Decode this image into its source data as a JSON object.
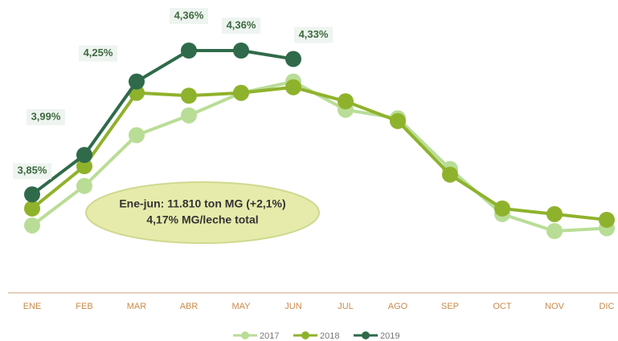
{
  "chart_data": {
    "type": "line",
    "categories": [
      "ENE",
      "FEB",
      "MAR",
      "ABR",
      "MAY",
      "JUN",
      "JUL",
      "AGO",
      "SEP",
      "OCT",
      "NOV",
      "DIC"
    ],
    "series": [
      {
        "name": "2017",
        "color": "#b9dd96",
        "values": [
          3.74,
          3.88,
          4.06,
          4.13,
          4.21,
          4.25,
          4.15,
          4.12,
          3.94,
          3.78,
          3.72,
          3.73
        ]
      },
      {
        "name": "2018",
        "color": "#8fb22c",
        "values": [
          3.8,
          3.95,
          4.21,
          4.2,
          4.21,
          4.23,
          4.18,
          4.11,
          3.92,
          3.8,
          3.78,
          3.76
        ]
      },
      {
        "name": "2019",
        "color": "#2f6a4a",
        "values": [
          3.85,
          3.99,
          4.25,
          4.36,
          4.36,
          4.33,
          null,
          null,
          null,
          null,
          null,
          null
        ],
        "value_labels": [
          "3,85%",
          "3,99%",
          "4,25%",
          "4,36%",
          "4,36%",
          "4,33%",
          null,
          null,
          null,
          null,
          null,
          null
        ]
      }
    ],
    "annotations": [
      "Ene-jun: 11.810 ton MG (+2,1%)",
      "4,17% MG/leche total"
    ]
  }
}
